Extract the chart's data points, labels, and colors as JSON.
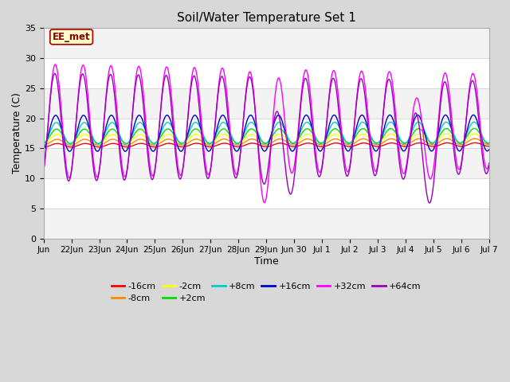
{
  "title": "Soil/Water Temperature Set 1",
  "xlabel": "Time",
  "ylabel": "Temperature (C)",
  "ylim": [
    0,
    35
  ],
  "yticks": [
    0,
    5,
    10,
    15,
    20,
    25,
    30,
    35
  ],
  "background_color": "#d8d8d8",
  "plot_bg_color": "#ffffff",
  "series_names": [
    "-16cm",
    "-8cm",
    "-2cm",
    "+2cm",
    "+8cm",
    "+16cm",
    "+32cm",
    "+64cm"
  ],
  "series_colors": [
    "#ff0000",
    "#ff8800",
    "#ffff00",
    "#00dd00",
    "#00cccc",
    "#0000cc",
    "#ff00ff",
    "#9900bb"
  ],
  "annotation_text": "EE_met",
  "annotation_bg": "#ffffcc",
  "annotation_border": "#aa0000",
  "xtick_pos": [
    0,
    1,
    2,
    3,
    4,
    5,
    6,
    7,
    8,
    9,
    10,
    11,
    12,
    13,
    14,
    15,
    16
  ],
  "xtick_labels": [
    "Jun",
    "22Jun",
    "23Jun",
    "24Jun",
    "25Jun",
    "26Jun",
    "27Jun",
    "28Jun",
    "29Jun",
    "Jun 30",
    "Jul 1",
    "Jul 2",
    "Jul 3",
    "Jul 4",
    "Jul 5",
    "Jul 6",
    "Jul 7"
  ]
}
